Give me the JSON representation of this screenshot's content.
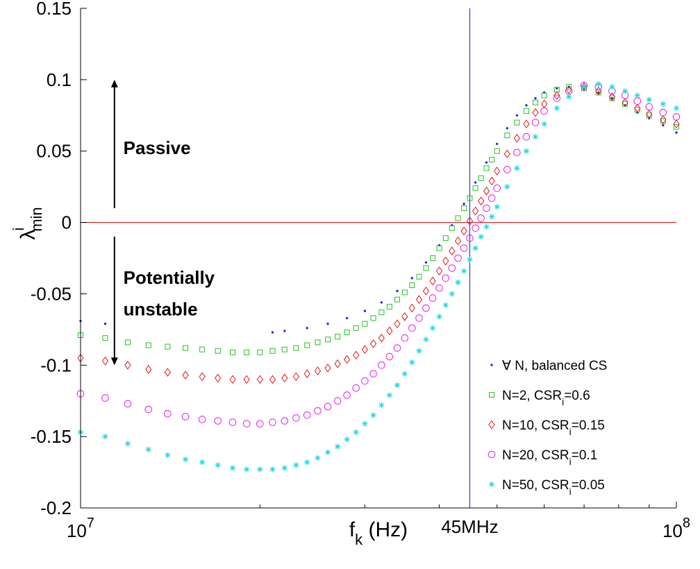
{
  "chart_data": {
    "type": "scatter",
    "x_scale": "log",
    "xlim": [
      10000000,
      100000000
    ],
    "ylim": [
      -0.2,
      0.15
    ],
    "grid": false,
    "legend_position": "bottom-right",
    "xlabel": {
      "main": "f",
      "sub": "k",
      "rest": " (Hz)"
    },
    "ylabel": {
      "main": "λ",
      "sup": "i",
      "sub": "min"
    },
    "x_ticks": [
      {
        "value": 10000000,
        "base": "10",
        "exp": "7"
      },
      {
        "value": 100000000,
        "base": "10",
        "exp": "8"
      }
    ],
    "x_minor_ticks": [
      20000000,
      30000000,
      40000000,
      50000000,
      60000000,
      70000000,
      80000000,
      90000000
    ],
    "y_ticks": [
      {
        "value": 0.15,
        "label": "0.15"
      },
      {
        "value": 0.1,
        "label": "0.1"
      },
      {
        "value": 0.05,
        "label": "0.05"
      },
      {
        "value": 0,
        "label": "0"
      },
      {
        "value": -0.05,
        "label": "-0.05"
      },
      {
        "value": -0.1,
        "label": "-0.1"
      },
      {
        "value": -0.15,
        "label": "-0.15"
      },
      {
        "value": -0.2,
        "label": "-0.2"
      }
    ],
    "reference_lines": [
      {
        "orientation": "horizontal",
        "value": 0,
        "color": "#e8141a"
      },
      {
        "orientation": "vertical",
        "value": 45000000,
        "color": "#1f3fd6",
        "label": "45MHz"
      }
    ],
    "annotations": [
      {
        "text": "Passive",
        "x": 11800000,
        "y": 0.048
      },
      {
        "text": "Potentially",
        "x": 11800000,
        "y": -0.043
      },
      {
        "text": "unstable",
        "x": 11800000,
        "y": -0.065
      }
    ],
    "arrows": [
      {
        "x": 11400000,
        "y_from": 0.01,
        "y_to": 0.1
      },
      {
        "x": 11400000,
        "y_from": -0.01,
        "y_to": -0.1
      }
    ],
    "series": [
      {
        "name": {
          "pre": "∀ N, balanced CS",
          "sub": "",
          "post": ""
        },
        "marker": "dot",
        "color": "#1f2fd6",
        "x": [
          10000000,
          11000000,
          21000000,
          22000000,
          24000000,
          26000000,
          28000000,
          30000000,
          32000000,
          34000000,
          36000000,
          38000000,
          40000000,
          42000000,
          44000000,
          46000000,
          48000000,
          50000000,
          52000000,
          54000000,
          56000000,
          58000000,
          60000000,
          63000000,
          66000000,
          70000000,
          74000000,
          78000000,
          82000000,
          86000000,
          90000000,
          95000000,
          100000000
        ],
        "y": [
          -0.069,
          -0.071,
          -0.077,
          -0.076,
          -0.074,
          -0.071,
          -0.067,
          -0.062,
          -0.056,
          -0.048,
          -0.039,
          -0.028,
          -0.016,
          -0.002,
          0.013,
          0.028,
          0.042,
          0.055,
          0.066,
          0.075,
          0.082,
          0.087,
          0.091,
          0.094,
          0.095,
          0.094,
          0.091,
          0.087,
          0.082,
          0.077,
          0.073,
          0.068,
          0.063
        ]
      },
      {
        "name": {
          "pre": "N=2, CSR",
          "sub": "i",
          "post": "=0.6"
        },
        "marker": "square",
        "color": "#22c322",
        "x": [
          10000000,
          11000000,
          12000000,
          13000000,
          14000000,
          15000000,
          16000000,
          17000000,
          18000000,
          19000000,
          20000000,
          21000000,
          22000000,
          23000000,
          24000000,
          25000000,
          26000000,
          27000000,
          28000000,
          29000000,
          30000000,
          31000000,
          32000000,
          33000000,
          34000000,
          35000000,
          36000000,
          37000000,
          38000000,
          39000000,
          40000000,
          41000000,
          42000000,
          43000000,
          44000000,
          45000000,
          46000000,
          47000000,
          48000000,
          49000000,
          50000000,
          52000000,
          54000000,
          56000000,
          58000000,
          60000000,
          63000000,
          66000000,
          70000000,
          74000000,
          78000000,
          82000000,
          86000000,
          90000000,
          95000000,
          100000000
        ],
        "y": [
          -0.079,
          -0.081,
          -0.084,
          -0.086,
          -0.087,
          -0.088,
          -0.089,
          -0.09,
          -0.091,
          -0.091,
          -0.091,
          -0.09,
          -0.089,
          -0.088,
          -0.086,
          -0.084,
          -0.082,
          -0.08,
          -0.077,
          -0.074,
          -0.071,
          -0.067,
          -0.063,
          -0.059,
          -0.054,
          -0.049,
          -0.044,
          -0.038,
          -0.032,
          -0.025,
          -0.018,
          -0.011,
          -0.004,
          0.003,
          0.01,
          0.017,
          0.024,
          0.031,
          0.038,
          0.044,
          0.05,
          0.061,
          0.07,
          0.078,
          0.084,
          0.089,
          0.093,
          0.095,
          0.094,
          0.091,
          0.087,
          0.083,
          0.079,
          0.075,
          0.071,
          0.067
        ]
      },
      {
        "name": {
          "pre": "N=10, CSR",
          "sub": "i",
          "post": "=0.15"
        },
        "marker": "diamond",
        "color": "#e0151b",
        "x": [
          10000000,
          11000000,
          12000000,
          13000000,
          14000000,
          15000000,
          16000000,
          17000000,
          18000000,
          19000000,
          20000000,
          21000000,
          22000000,
          23000000,
          24000000,
          25000000,
          26000000,
          27000000,
          28000000,
          29000000,
          30000000,
          31000000,
          32000000,
          33000000,
          34000000,
          35000000,
          36000000,
          37000000,
          38000000,
          39000000,
          40000000,
          41000000,
          42000000,
          43000000,
          44000000,
          45000000,
          46000000,
          47000000,
          48000000,
          49000000,
          50000000,
          52000000,
          54000000,
          56000000,
          58000000,
          60000000,
          63000000,
          66000000,
          70000000,
          74000000,
          78000000,
          82000000,
          86000000,
          90000000,
          95000000,
          100000000
        ],
        "y": [
          -0.095,
          -0.097,
          -0.1,
          -0.103,
          -0.105,
          -0.107,
          -0.108,
          -0.109,
          -0.11,
          -0.11,
          -0.11,
          -0.11,
          -0.109,
          -0.108,
          -0.106,
          -0.104,
          -0.102,
          -0.099,
          -0.096,
          -0.093,
          -0.089,
          -0.085,
          -0.081,
          -0.076,
          -0.071,
          -0.066,
          -0.06,
          -0.054,
          -0.048,
          -0.041,
          -0.034,
          -0.027,
          -0.02,
          -0.013,
          -0.006,
          0.001,
          0.008,
          0.015,
          0.022,
          0.029,
          0.036,
          0.048,
          0.059,
          0.069,
          0.077,
          0.083,
          0.089,
          0.093,
          0.095,
          0.092,
          0.088,
          0.084,
          0.08,
          0.076,
          0.072,
          0.069
        ]
      },
      {
        "name": {
          "pre": "N=20, CSR",
          "sub": "i",
          "post": "=0.1"
        },
        "marker": "circle",
        "color": "#e619e6",
        "x": [
          10000000,
          11000000,
          12000000,
          13000000,
          14000000,
          15000000,
          16000000,
          17000000,
          18000000,
          19000000,
          20000000,
          21000000,
          22000000,
          23000000,
          24000000,
          25000000,
          26000000,
          27000000,
          28000000,
          29000000,
          30000000,
          31000000,
          32000000,
          33000000,
          34000000,
          35000000,
          36000000,
          37000000,
          38000000,
          39000000,
          40000000,
          41000000,
          42000000,
          43000000,
          44000000,
          45000000,
          46000000,
          47000000,
          48000000,
          49000000,
          50000000,
          52000000,
          54000000,
          56000000,
          58000000,
          60000000,
          63000000,
          66000000,
          70000000,
          74000000,
          78000000,
          82000000,
          86000000,
          90000000,
          95000000,
          100000000
        ],
        "y": [
          -0.12,
          -0.123,
          -0.127,
          -0.131,
          -0.134,
          -0.136,
          -0.138,
          -0.139,
          -0.14,
          -0.141,
          -0.141,
          -0.14,
          -0.139,
          -0.137,
          -0.135,
          -0.132,
          -0.129,
          -0.125,
          -0.121,
          -0.116,
          -0.111,
          -0.106,
          -0.1,
          -0.094,
          -0.088,
          -0.081,
          -0.074,
          -0.067,
          -0.06,
          -0.053,
          -0.046,
          -0.039,
          -0.032,
          -0.025,
          -0.018,
          -0.011,
          -0.004,
          0.003,
          0.01,
          0.017,
          0.024,
          0.037,
          0.049,
          0.06,
          0.07,
          0.078,
          0.087,
          0.092,
          0.096,
          0.095,
          0.092,
          0.089,
          0.085,
          0.081,
          0.077,
          0.074
        ]
      },
      {
        "name": {
          "pre": "N=50, CSR",
          "sub": "i",
          "post": "=0.05"
        },
        "marker": "star",
        "color": "#19d9e6",
        "x": [
          10000000,
          11000000,
          12000000,
          13000000,
          14000000,
          15000000,
          16000000,
          17000000,
          18000000,
          19000000,
          20000000,
          21000000,
          22000000,
          23000000,
          24000000,
          25000000,
          26000000,
          27000000,
          28000000,
          29000000,
          30000000,
          31000000,
          32000000,
          33000000,
          34000000,
          35000000,
          36000000,
          37000000,
          38000000,
          39000000,
          40000000,
          41000000,
          42000000,
          43000000,
          44000000,
          45000000,
          46000000,
          47000000,
          48000000,
          49000000,
          50000000,
          52000000,
          54000000,
          56000000,
          58000000,
          60000000,
          63000000,
          66000000,
          70000000,
          74000000,
          78000000,
          82000000,
          86000000,
          90000000,
          95000000,
          100000000
        ],
        "y": [
          -0.147,
          -0.15,
          -0.155,
          -0.159,
          -0.163,
          -0.166,
          -0.168,
          -0.17,
          -0.172,
          -0.173,
          -0.173,
          -0.173,
          -0.172,
          -0.17,
          -0.168,
          -0.165,
          -0.161,
          -0.157,
          -0.152,
          -0.147,
          -0.141,
          -0.135,
          -0.128,
          -0.121,
          -0.114,
          -0.106,
          -0.098,
          -0.09,
          -0.082,
          -0.074,
          -0.066,
          -0.058,
          -0.05,
          -0.042,
          -0.034,
          -0.026,
          -0.018,
          -0.01,
          -0.003,
          0.004,
          0.011,
          0.025,
          0.038,
          0.05,
          0.06,
          0.069,
          0.08,
          0.088,
          0.095,
          0.097,
          0.095,
          0.092,
          0.089,
          0.086,
          0.083,
          0.08
        ]
      }
    ]
  }
}
